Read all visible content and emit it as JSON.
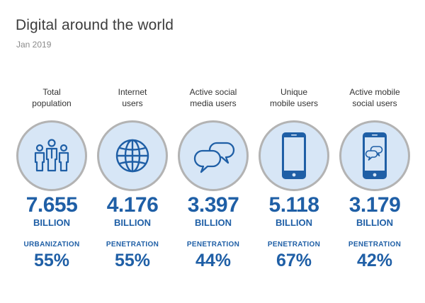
{
  "header": {
    "title": "Digital around the world",
    "subtitle": "Jan 2019"
  },
  "colors": {
    "accent": "#1f5fa6",
    "circle_fill": "#d7e6f6",
    "circle_border": "#b3b3b3",
    "icon": "#1f5fa6"
  },
  "chart_data": {
    "type": "table",
    "title": "Digital around the world",
    "subtitle": "Jan 2019",
    "columns": [
      {
        "label_line1": "Total",
        "label_line2": "population",
        "icon": "people-icon",
        "value": "7.655",
        "unit": "BILLION",
        "metric_label": "URBANIZATION",
        "metric_value": "55%"
      },
      {
        "label_line1": "Internet",
        "label_line2": "users",
        "icon": "globe-icon",
        "value": "4.176",
        "unit": "BILLION",
        "metric_label": "PENETRATION",
        "metric_value": "55%"
      },
      {
        "label_line1": "Active social",
        "label_line2": "media users",
        "icon": "chat-bubbles-icon",
        "value": "3.397",
        "unit": "BILLION",
        "metric_label": "PENETRATION",
        "metric_value": "44%"
      },
      {
        "label_line1": "Unique",
        "label_line2": "mobile users",
        "icon": "mobile-phone-icon",
        "value": "5.118",
        "unit": "BILLION",
        "metric_label": "PENETRATION",
        "metric_value": "67%"
      },
      {
        "label_line1": "Active mobile",
        "label_line2": "social users",
        "icon": "mobile-chat-icon",
        "value": "3.179",
        "unit": "BILLION",
        "metric_label": "PENETRATION",
        "metric_value": "42%"
      }
    ]
  }
}
